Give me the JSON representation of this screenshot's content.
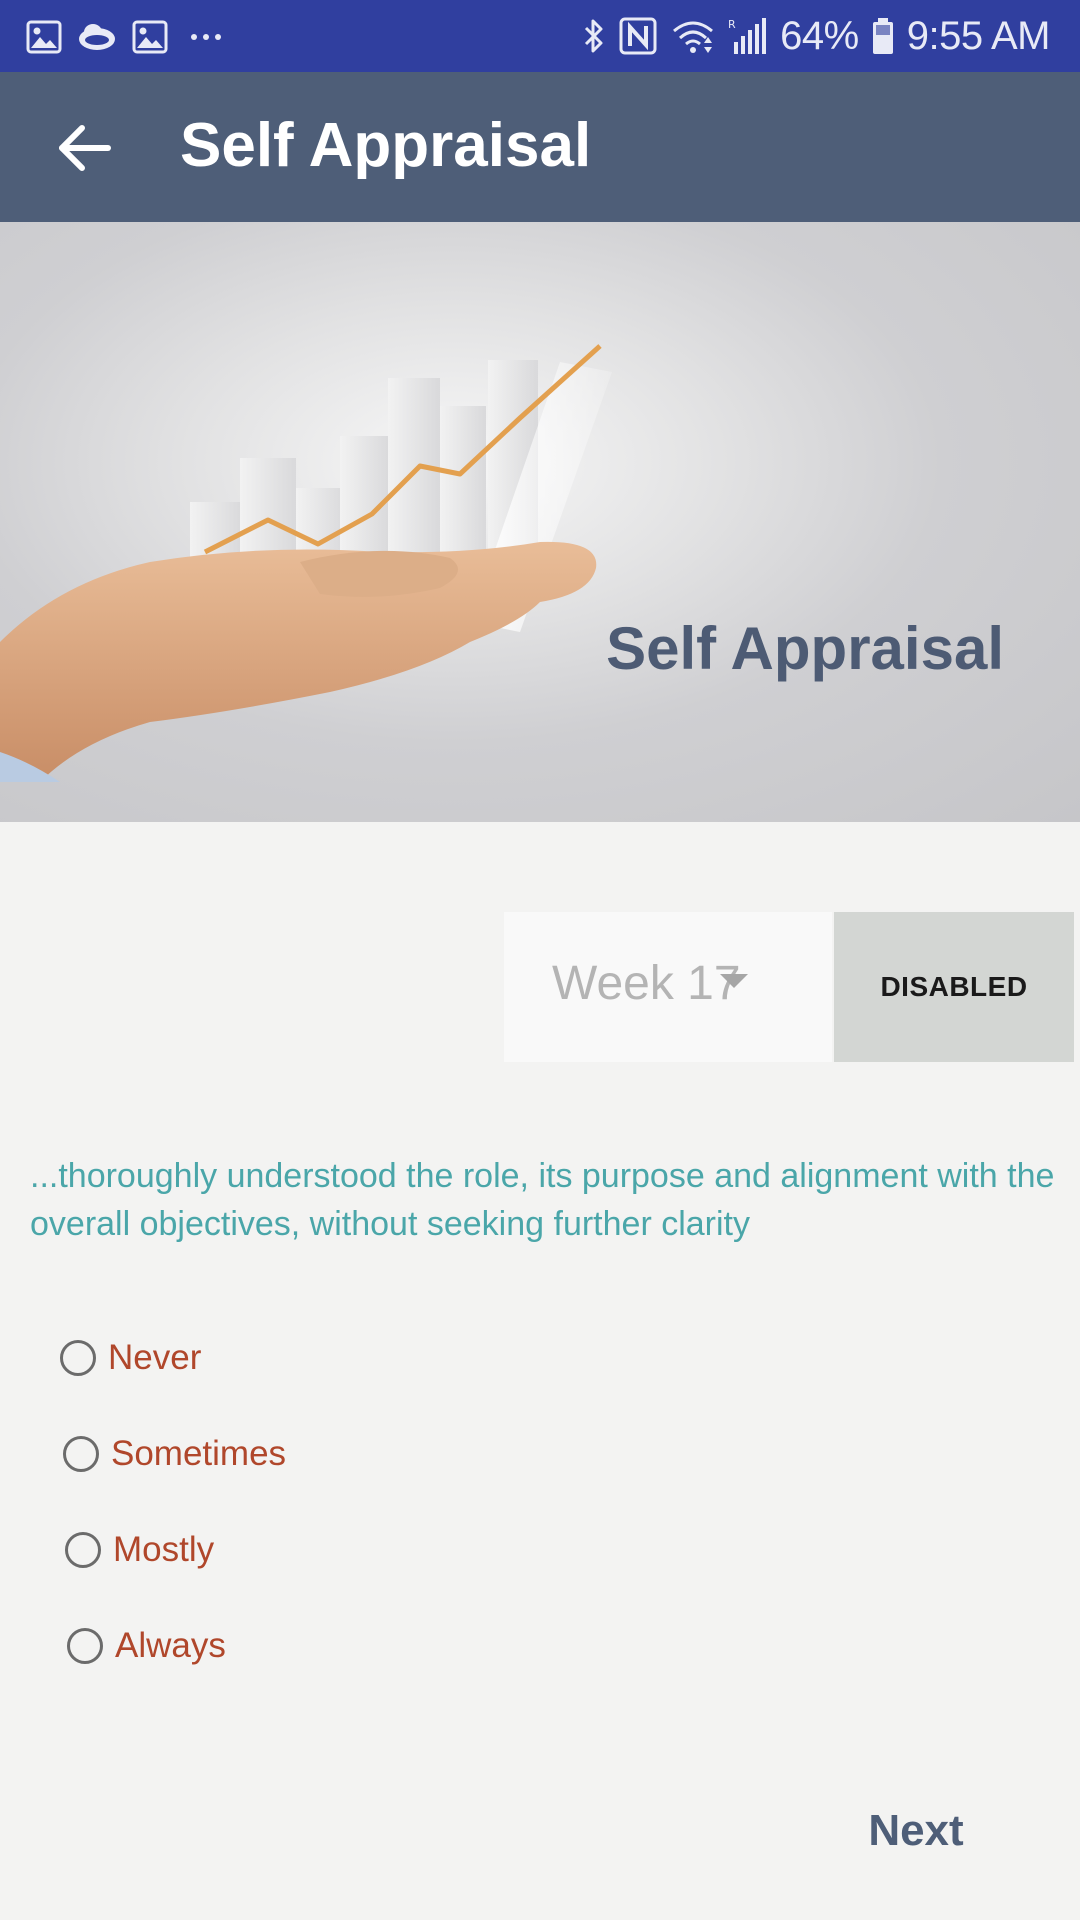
{
  "status_bar": {
    "battery": "64%",
    "time": "9:55 AM",
    "notification_icons": [
      "image-icon",
      "cloud-icon",
      "image-icon",
      "more-dots-icon"
    ],
    "system_icons": [
      "bluetooth-icon",
      "nfc-icon",
      "wifi-icon",
      "signal-icon",
      "battery-icon"
    ]
  },
  "app_bar": {
    "title": "Self Appraisal",
    "back_icon": "arrow-left-icon"
  },
  "hero": {
    "title": "Self Appraisal"
  },
  "week_selector": {
    "value": "Week 17",
    "caret_icon": "dropdown-caret-icon"
  },
  "disabled_button": {
    "label": "DISABLED"
  },
  "question": {
    "text": "...thoroughly understood the role, its purpose and alignment with the overall objectives, without seeking further clarity"
  },
  "options": [
    {
      "label": "Never"
    },
    {
      "label": "Sometimes"
    },
    {
      "label": "Mostly"
    },
    {
      "label": "Always"
    }
  ],
  "next_button": {
    "label": "Next"
  },
  "colors": {
    "status_bar": "#303f9f",
    "app_bar": "#4e5e78",
    "question_text": "#4aa6a9",
    "option_text": "#b0472b",
    "background": "#f3f3f2"
  }
}
